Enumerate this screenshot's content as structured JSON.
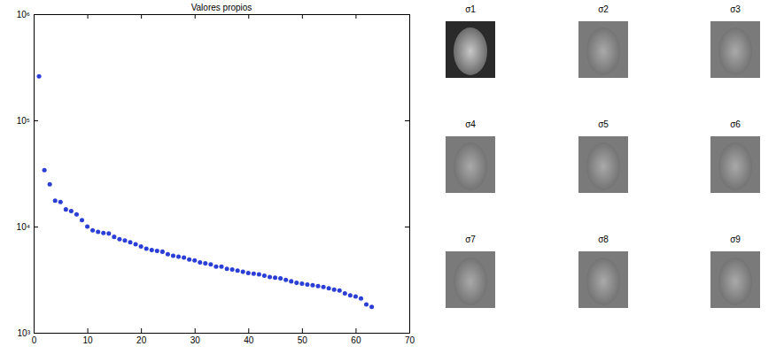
{
  "chart_data": {
    "type": "scatter",
    "title": "Valores propios",
    "x": [
      1,
      2,
      3,
      4,
      5,
      6,
      7,
      8,
      9,
      10,
      11,
      12,
      13,
      14,
      15,
      16,
      17,
      18,
      19,
      20,
      21,
      22,
      23,
      24,
      25,
      26,
      27,
      28,
      29,
      30,
      31,
      32,
      33,
      34,
      35,
      36,
      37,
      38,
      39,
      40,
      41,
      42,
      43,
      44,
      45,
      46,
      47,
      48,
      49,
      50,
      51,
      52,
      53,
      54,
      55,
      56,
      57,
      58,
      59,
      60,
      61,
      62,
      63
    ],
    "values": [
      260000,
      34000,
      25000,
      17500,
      17000,
      14500,
      14000,
      13000,
      11500,
      10000,
      9200,
      8900,
      8700,
      8600,
      8000,
      7600,
      7400,
      7100,
      6800,
      6500,
      6200,
      6000,
      5900,
      5800,
      5500,
      5300,
      5200,
      5100,
      4900,
      4800,
      4600,
      4500,
      4400,
      4200,
      4200,
      4000,
      3950,
      3850,
      3750,
      3650,
      3600,
      3550,
      3450,
      3350,
      3300,
      3250,
      3150,
      3050,
      2950,
      2900,
      2850,
      2800,
      2750,
      2700,
      2620,
      2550,
      2500,
      2350,
      2250,
      2200,
      2100,
      1850,
      1750
    ],
    "color": "#2b3fd6",
    "marker": "circle",
    "log": "y",
    "grid": false,
    "xlim": [
      0,
      70
    ],
    "xticks": [
      0,
      10,
      20,
      30,
      40,
      50,
      60,
      70
    ],
    "ylim": [
      1000,
      1000000
    ],
    "yticks": [
      {
        "value": 1000,
        "label": "10³"
      },
      {
        "value": 10000,
        "label": "10⁴"
      },
      {
        "value": 100000,
        "label": "10⁵"
      },
      {
        "value": 1000000,
        "label": "10⁶"
      }
    ]
  },
  "eigenfaces": {
    "labels": [
      "σ1",
      "σ2",
      "σ3",
      "σ4",
      "σ5",
      "σ6",
      "σ7",
      "σ8",
      "σ9"
    ]
  }
}
